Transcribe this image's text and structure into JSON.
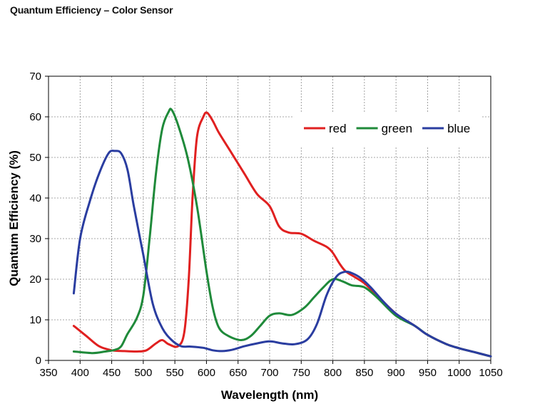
{
  "page_title": "Quantum Efficiency – Color Sensor",
  "chart_data": {
    "type": "line",
    "title": "Quantum Efficiency – Color Sensor",
    "xlabel": "Wavelength (nm)",
    "ylabel": "Quantum Efficiency (%)",
    "xlim": [
      350,
      1050
    ],
    "ylim": [
      0,
      70
    ],
    "x_ticks": [
      350,
      400,
      450,
      500,
      550,
      600,
      650,
      700,
      750,
      800,
      850,
      900,
      950,
      1000,
      1050
    ],
    "y_ticks": [
      0,
      10,
      20,
      30,
      40,
      50,
      60,
      70
    ],
    "grid": true,
    "legend_position": "top-right",
    "series": [
      {
        "name": "red",
        "color": "#e02020",
        "points": [
          [
            390,
            8.5
          ],
          [
            410,
            6
          ],
          [
            430,
            3.5
          ],
          [
            450,
            2.5
          ],
          [
            470,
            2.3
          ],
          [
            490,
            2.2
          ],
          [
            505,
            2.5
          ],
          [
            520,
            4.2
          ],
          [
            530,
            5
          ],
          [
            540,
            4
          ],
          [
            555,
            3.5
          ],
          [
            565,
            7
          ],
          [
            572,
            20
          ],
          [
            578,
            40
          ],
          [
            585,
            55
          ],
          [
            595,
            60
          ],
          [
            601,
            61
          ],
          [
            610,
            59
          ],
          [
            620,
            56
          ],
          [
            640,
            51
          ],
          [
            660,
            46
          ],
          [
            680,
            41
          ],
          [
            700,
            38
          ],
          [
            715,
            33
          ],
          [
            730,
            31.5
          ],
          [
            750,
            31.2
          ],
          [
            770,
            29.5
          ],
          [
            790,
            28
          ],
          [
            800,
            26.5
          ],
          [
            810,
            24
          ],
          [
            820,
            22
          ],
          [
            835,
            20.5
          ],
          [
            850,
            19
          ],
          [
            870,
            16
          ],
          [
            900,
            11.5
          ],
          [
            930,
            8.5
          ],
          [
            950,
            6.3
          ],
          [
            980,
            4
          ],
          [
            1000,
            3
          ],
          [
            1025,
            2
          ],
          [
            1050,
            1
          ]
        ]
      },
      {
        "name": "green",
        "color": "#1f8a3a",
        "points": [
          [
            390,
            2.2
          ],
          [
            420,
            1.8
          ],
          [
            440,
            2.2
          ],
          [
            455,
            2.6
          ],
          [
            465,
            3.5
          ],
          [
            475,
            6.5
          ],
          [
            490,
            10.5
          ],
          [
            500,
            16
          ],
          [
            510,
            30
          ],
          [
            520,
            46
          ],
          [
            530,
            57
          ],
          [
            540,
            61.2
          ],
          [
            545,
            61.7
          ],
          [
            555,
            58
          ],
          [
            570,
            50
          ],
          [
            585,
            38
          ],
          [
            600,
            22
          ],
          [
            610,
            13
          ],
          [
            620,
            8
          ],
          [
            635,
            6
          ],
          [
            655,
            5
          ],
          [
            670,
            6
          ],
          [
            685,
            8.5
          ],
          [
            700,
            11
          ],
          [
            715,
            11.6
          ],
          [
            735,
            11.2
          ],
          [
            755,
            13
          ],
          [
            770,
            15.5
          ],
          [
            785,
            18
          ],
          [
            800,
            20
          ],
          [
            815,
            19.5
          ],
          [
            830,
            18.5
          ],
          [
            850,
            18
          ],
          [
            870,
            15.5
          ],
          [
            900,
            11
          ],
          [
            930,
            8.5
          ],
          [
            950,
            6.3
          ],
          [
            980,
            4
          ],
          [
            1000,
            3
          ],
          [
            1025,
            2
          ],
          [
            1050,
            1
          ]
        ]
      },
      {
        "name": "blue",
        "color": "#2a3da0",
        "points": [
          [
            390,
            16.5
          ],
          [
            400,
            30
          ],
          [
            415,
            39
          ],
          [
            430,
            46
          ],
          [
            445,
            51
          ],
          [
            455,
            51.6
          ],
          [
            465,
            51
          ],
          [
            475,
            47
          ],
          [
            485,
            38
          ],
          [
            500,
            26
          ],
          [
            515,
            14
          ],
          [
            530,
            8
          ],
          [
            545,
            5
          ],
          [
            560,
            3.5
          ],
          [
            575,
            3.4
          ],
          [
            595,
            3.1
          ],
          [
            610,
            2.5
          ],
          [
            625,
            2.3
          ],
          [
            640,
            2.6
          ],
          [
            660,
            3.5
          ],
          [
            680,
            4.2
          ],
          [
            700,
            4.7
          ],
          [
            720,
            4.2
          ],
          [
            740,
            4
          ],
          [
            760,
            5.2
          ],
          [
            775,
            9
          ],
          [
            790,
            16
          ],
          [
            805,
            20.5
          ],
          [
            818,
            21.8
          ],
          [
            830,
            21.5
          ],
          [
            845,
            20.2
          ],
          [
            860,
            18
          ],
          [
            880,
            14.5
          ],
          [
            900,
            11.5
          ],
          [
            930,
            8.5
          ],
          [
            950,
            6.3
          ],
          [
            980,
            4
          ],
          [
            1000,
            3
          ],
          [
            1025,
            2
          ],
          [
            1050,
            1
          ]
        ]
      }
    ]
  }
}
